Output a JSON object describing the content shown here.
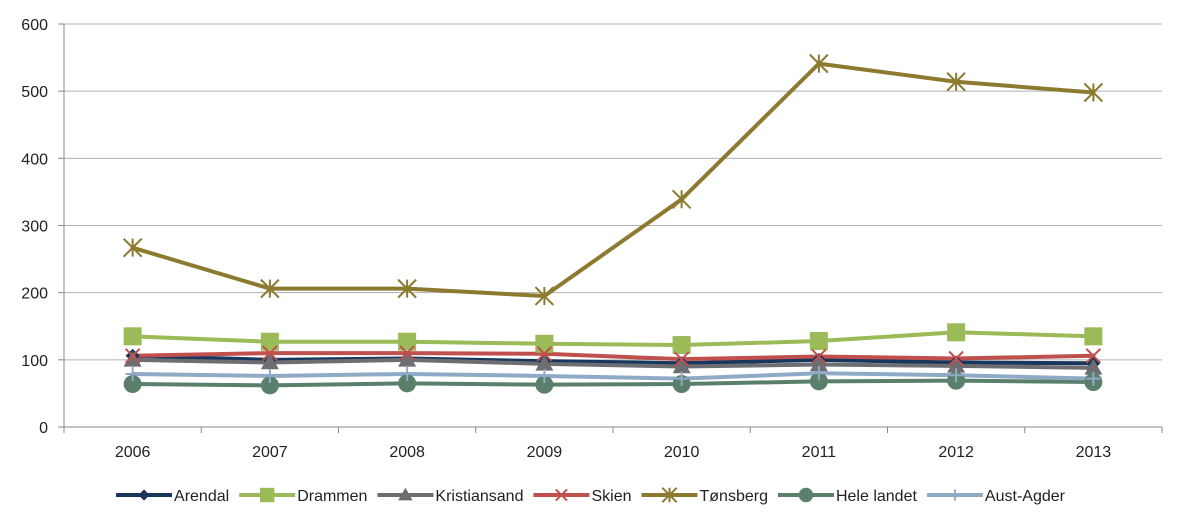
{
  "chart_data": {
    "type": "line",
    "title": "",
    "xlabel": "",
    "ylabel": "",
    "categories": [
      "2006",
      "2007",
      "2008",
      "2009",
      "2010",
      "2011",
      "2012",
      "2013"
    ],
    "ylim": [
      0,
      600
    ],
    "yticks": [
      0,
      100,
      200,
      300,
      400,
      500,
      600
    ],
    "grid": "horizontal",
    "legend_position": "bottom",
    "series": [
      {
        "name": "Arendal",
        "color": "#17375e",
        "marker": "diamond",
        "values": [
          106,
          100,
          102,
          98,
          95,
          100,
          96,
          95
        ]
      },
      {
        "name": "Drammen",
        "color": "#9bbb59",
        "marker": "square",
        "values": [
          135,
          127,
          127,
          124,
          122,
          128,
          141,
          135
        ]
      },
      {
        "name": "Kristiansand",
        "color": "#6d6e71",
        "marker": "triangle",
        "values": [
          100,
          96,
          100,
          94,
          90,
          93,
          91,
          88
        ]
      },
      {
        "name": "Skien",
        "color": "#c0504d",
        "marker": "x",
        "values": [
          106,
          110,
          110,
          109,
          101,
          105,
          102,
          106
        ]
      },
      {
        "name": "Tønsberg",
        "color": "#8c7a2f",
        "marker": "star",
        "values": [
          267,
          206,
          206,
          195,
          339,
          541,
          514,
          498
        ]
      },
      {
        "name": "Hele landet",
        "color": "#5a7f6a",
        "marker": "circle",
        "values": [
          64,
          62,
          65,
          63,
          64,
          68,
          69,
          67
        ]
      },
      {
        "name": "Aust-Agder",
        "color": "#8eaac7",
        "marker": "plus",
        "values": [
          79,
          76,
          79,
          76,
          72,
          80,
          77,
          72
        ]
      }
    ]
  }
}
